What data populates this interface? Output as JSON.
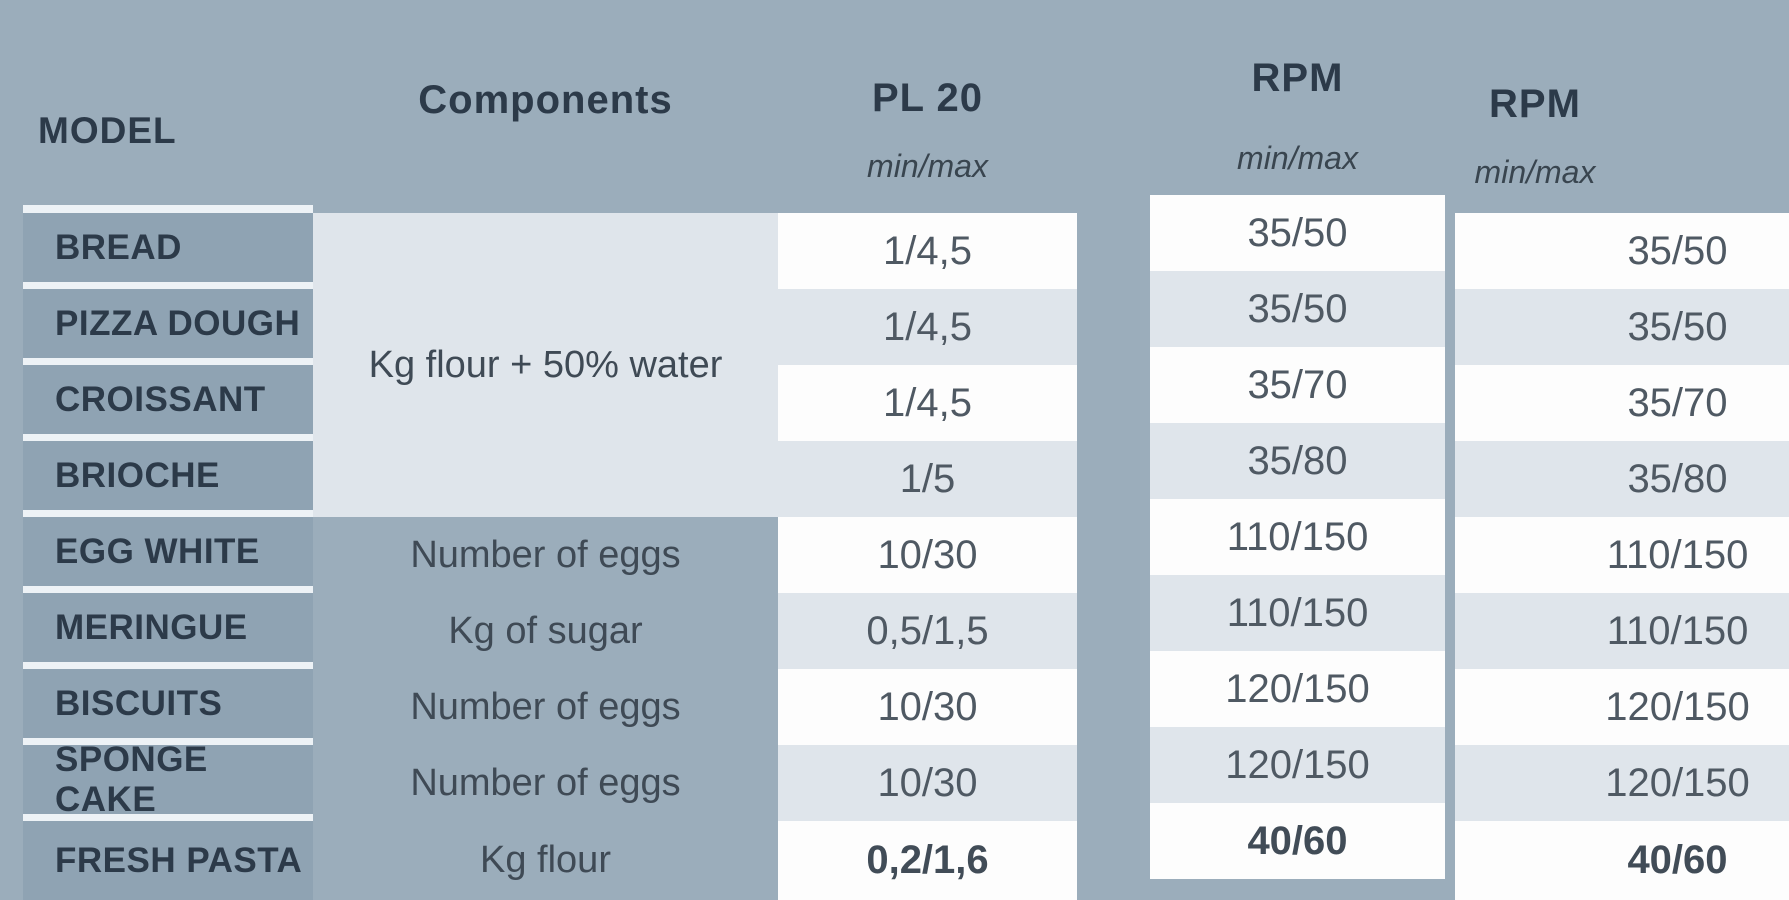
{
  "table": {
    "headers": {
      "model": "MODEL",
      "components": "Components",
      "pl20": "PL 20",
      "pl20_sub": "min/max",
      "rpm1": "RPM",
      "rpm1_sub": "min/max",
      "rpm2": "RPM",
      "rpm2_sub": "min/max"
    },
    "merged_component": "Kg flour + 50% water",
    "rows": [
      {
        "model": "BREAD",
        "pl20": "1/4,5",
        "rpm1": "35/50",
        "rpm2": "35/50"
      },
      {
        "model": "PIZZA DOUGH",
        "pl20": "1/4,5",
        "rpm1": "35/50",
        "rpm2": "35/50"
      },
      {
        "model": "CROISSANT",
        "pl20": "1/4,5",
        "rpm1": "35/70",
        "rpm2": "35/70"
      },
      {
        "model": "BRIOCHE",
        "pl20": "1/5",
        "rpm1": "35/80",
        "rpm2": "35/80"
      },
      {
        "model": "EGG WHITE",
        "component": "Number of eggs",
        "pl20": "10/30",
        "rpm1": "110/150",
        "rpm2": "110/150"
      },
      {
        "model": "MERINGUE",
        "component": "Kg of sugar",
        "pl20": "0,5/1,5",
        "rpm1": "110/150",
        "rpm2": "110/150"
      },
      {
        "model": "BISCUITS",
        "component": "Number of eggs",
        "pl20": "10/30",
        "rpm1": "120/150",
        "rpm2": "120/150"
      },
      {
        "model": "SPONGE CAKE",
        "component": "Number of eggs",
        "pl20": "10/30",
        "rpm1": "120/150",
        "rpm2": "120/150"
      },
      {
        "model": "FRESH PASTA",
        "component": "Kg flour",
        "pl20": "0,2/1,6",
        "rpm1": "40/60",
        "rpm2": "40/60"
      }
    ]
  },
  "colors": {
    "page_background": "#9badbb",
    "model_cell_background": "#8fa3b3",
    "row_light": "#dfe5eb",
    "row_white": "#fdfdfd",
    "separator_line": "#edf2f6",
    "heading_text": "#2c3a49",
    "value_text": "#4f5963"
  }
}
